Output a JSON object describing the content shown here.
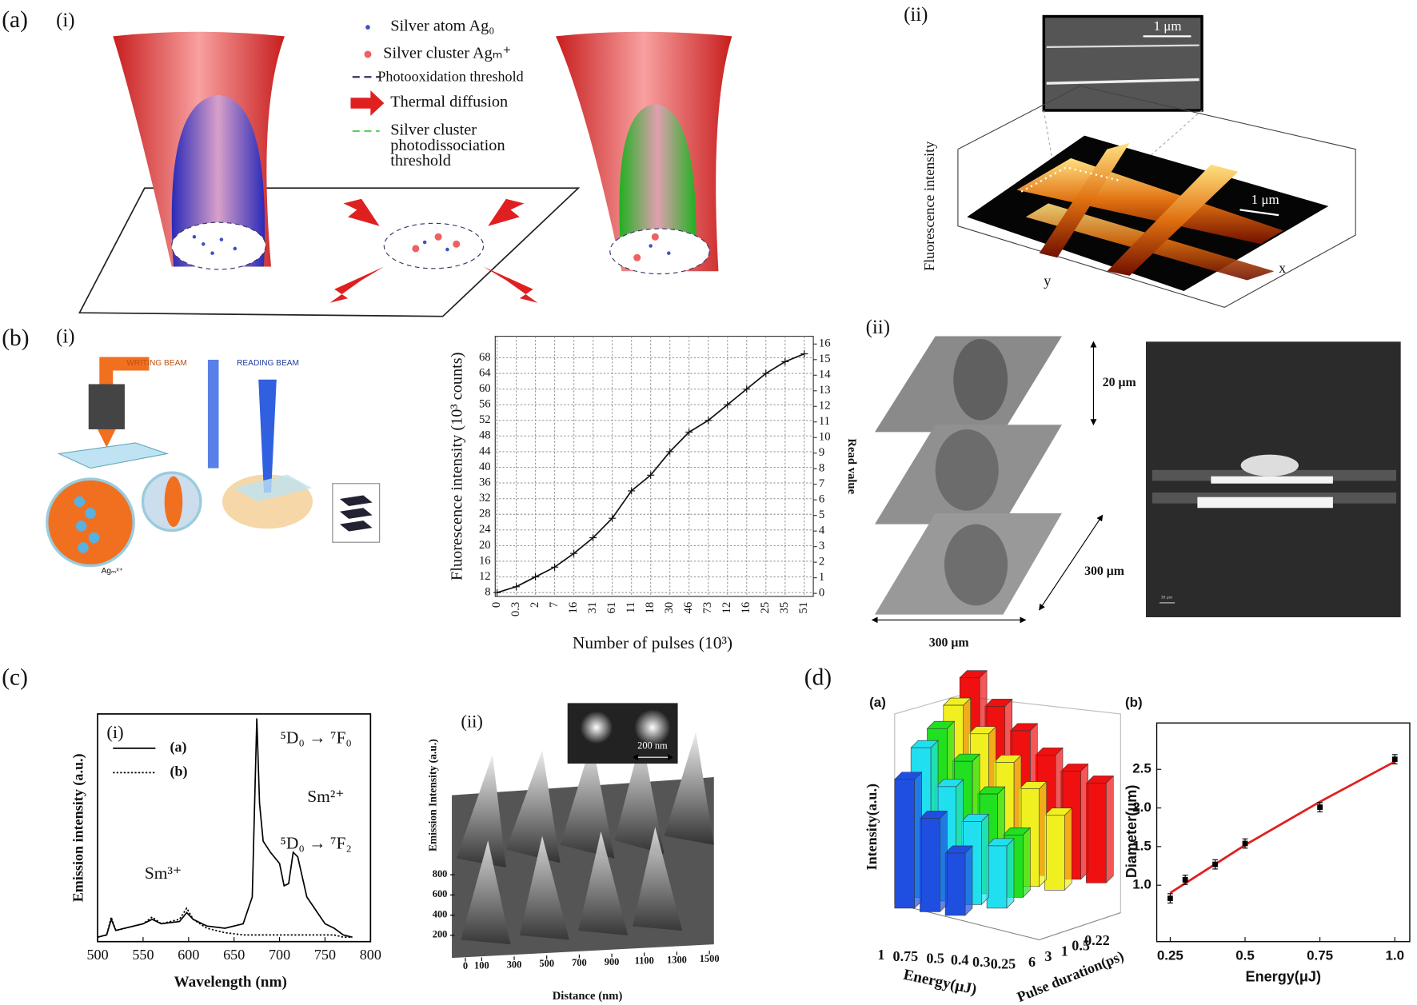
{
  "panels": {
    "a": {
      "label": "(a)",
      "i": {
        "label": "(i)",
        "legend": [
          [
            "Silver atom Ag₀"
          ],
          [
            "Silver cluster Agₘ⁺"
          ],
          [
            "Photooxidation threshold"
          ],
          [
            "Thermal diffusion"
          ],
          [
            "Silver cluster",
            "photodissociation",
            "threshold"
          ]
        ]
      },
      "ii": {
        "label": "(ii)",
        "scale_top": "1 μm",
        "scale_surface": "1 μm",
        "z_label": "Fluorescence intensity",
        "y_label": "y",
        "x_label": "x"
      }
    },
    "b": {
      "label": "(b)",
      "i": {
        "label": "(i)",
        "writing_beam": "WRITING BEAM",
        "reading_beam": "READING BEAM",
        "cluster_label": "Agₘˣ⁺",
        "chart": {
          "type": "line",
          "y_label": "Fluorescence intensity (10³ counts)",
          "x_label": "Number of pulses (10³)",
          "y2_label": "Read value",
          "categories": [
            "0",
            "0.3",
            "2",
            "7",
            "16",
            "31",
            "61",
            "11",
            "18",
            "30",
            "46",
            "73",
            "12",
            "16",
            "25",
            "35",
            "51"
          ],
          "values": [
            8,
            9.5,
            12,
            14.5,
            18,
            22,
            27,
            34,
            38,
            44,
            49,
            52,
            56,
            60,
            64,
            67,
            69
          ],
          "ylim": [
            7,
            73.5
          ],
          "yticks": [
            8,
            12,
            16,
            20,
            24,
            28,
            32,
            36,
            40,
            44,
            48,
            52,
            56,
            60,
            64,
            68
          ],
          "y2lim": [
            -0.2,
            16.5
          ],
          "y2ticks": [
            0,
            1,
            2,
            3,
            4,
            5,
            6,
            7,
            8,
            9,
            10,
            11,
            12,
            13,
            14,
            15,
            16
          ],
          "grid": true,
          "color": "#111"
        }
      },
      "ii": {
        "label": "(ii)",
        "depth": "20 μm",
        "side": "300 μm",
        "width": "300 μm",
        "micro_scale": "30 μm"
      }
    },
    "c": {
      "label": "(c)",
      "i": {
        "label": "(i)",
        "chart": {
          "type": "line",
          "x_label": "Wavelength (nm)",
          "y_label": "Emission intensity (a.u.)",
          "x": [
            500,
            510,
            515,
            520,
            530,
            550,
            560,
            570,
            590,
            598,
            605,
            620,
            640,
            660,
            670,
            675,
            678,
            682,
            690,
            700,
            705,
            710,
            715,
            720,
            730,
            740,
            750,
            760,
            770,
            780
          ],
          "series": [
            {
              "name": "(a)",
              "color": "#000",
              "dash": "none",
              "values": [
                2,
                3,
                10,
                5,
                6,
                8,
                10,
                8,
                9,
                13,
                10,
                7,
                6,
                8,
                20,
                100,
                62,
                45,
                40,
                35,
                25,
                26,
                40,
                38,
                20,
                14,
                8,
                6,
                3,
                2
              ]
            },
            {
              "name": "(b)",
              "color": "#000",
              "dash": "2,2",
              "values": [
                2,
                3,
                11,
                5,
                6,
                8,
                11,
                8,
                10,
                15,
                10,
                6,
                4,
                3,
                3,
                3,
                3,
                3,
                3,
                3,
                3,
                3,
                3,
                3,
                3,
                3,
                3,
                3,
                2,
                2
              ]
            }
          ],
          "xlim": [
            500,
            800
          ],
          "xticks": [
            500,
            550,
            600,
            650,
            700,
            750,
            800
          ],
          "ylim": [
            0,
            102
          ],
          "annotations": [
            "Sm³⁺",
            "Sm²⁺",
            "⁵D₀ → ⁷F₀",
            "⁵D₀ → ⁷F₂"
          ]
        }
      },
      "ii": {
        "label": "(ii)",
        "z_label": "Emission Intensity (a.u.)",
        "x_label": "Distance (nm)",
        "inset_scale": "200 nm",
        "zticks": [
          200,
          400,
          600,
          800
        ],
        "xticks": [
          0,
          100,
          300,
          500,
          700,
          900,
          1100,
          1300,
          1500
        ]
      }
    },
    "d": {
      "label": "(d)",
      "a": {
        "label": "(a)",
        "chart": {
          "type": "bar3d",
          "z_label": "Intensity(a.u.)",
          "x_label": "Energy(μJ)",
          "y_label": "Pulse duration(ps)",
          "energies": [
            "1",
            "0.75",
            "0.5",
            "0.4",
            "0.3",
            "0.25"
          ],
          "durations": [
            "6",
            "3",
            "1",
            "0.5",
            "0.22"
          ],
          "series": [
            {
              "color": "#1f4fe0",
              "values": [
                0.62,
                0.45,
                0.3
              ]
            },
            {
              "color": "#20e0f0",
              "values": [
                0.72,
                0.55,
                0.4,
                0.3
              ]
            },
            {
              "color": "#20e020",
              "values": [
                0.76,
                0.62,
                0.48,
                0.3
              ]
            },
            {
              "color": "#f0f020",
              "values": [
                0.82,
                0.7,
                0.58,
                0.47,
                0.36
              ]
            },
            {
              "color": "#f01010",
              "values": [
                0.9,
                0.78,
                0.68,
                0.58,
                0.52,
                0.48
              ]
            }
          ]
        }
      },
      "b": {
        "label": "(b)",
        "chart": {
          "type": "scatter",
          "x_label": "Energy(μJ)",
          "y_label": "Diameter(μm)",
          "x": [
            0.25,
            0.3,
            0.4,
            0.5,
            0.75,
            1.0
          ],
          "values": [
            0.83,
            1.07,
            1.27,
            1.54,
            2.01,
            2.63
          ],
          "errors": [
            0.06,
            0.06,
            0.06,
            0.06,
            0.06,
            0.06
          ],
          "fit": {
            "x": [
              0.25,
              0.5,
              0.75,
              1.0
            ],
            "values": [
              0.9,
              1.52,
              2.08,
              2.6
            ],
            "color": "#e02020"
          },
          "xlim": [
            0.205,
            1.05
          ],
          "xticks": [
            0.25,
            0.5,
            0.75,
            {
              "value": 1.0,
              "label": "1.0"
            }
          ],
          "ylim": [
            0.27,
            3.1
          ],
          "yticks": [
            {
              "value": 1.0,
              "label": "1.0"
            },
            1.5,
            {
              "value": 2.0,
              "label": "2.0"
            },
            2.5
          ]
        }
      }
    }
  }
}
